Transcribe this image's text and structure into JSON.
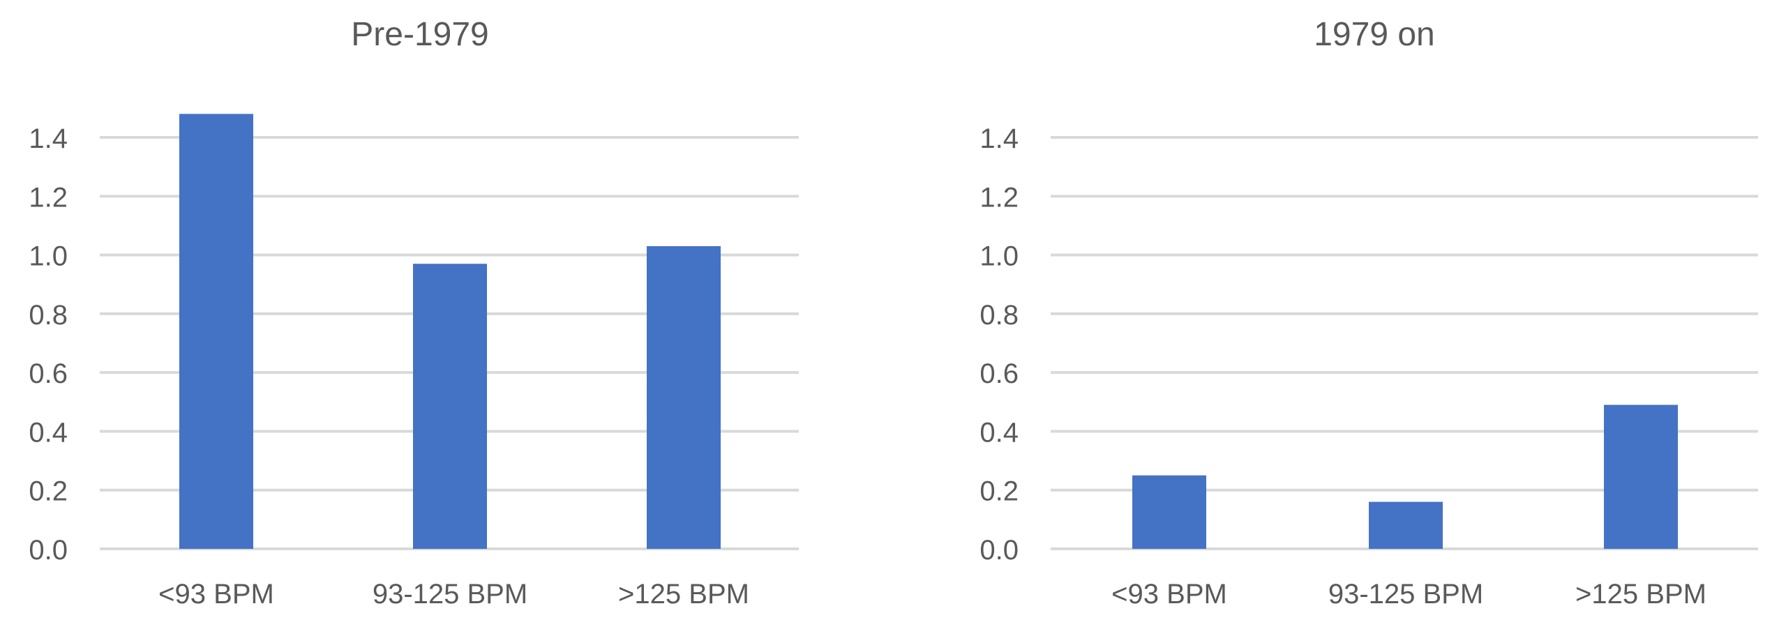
{
  "chart_data": [
    {
      "type": "bar",
      "title": "Pre-1979",
      "categories": [
        "<93 BPM",
        "93-125 BPM",
        ">125 BPM"
      ],
      "values": [
        1.48,
        0.97,
        1.03
      ],
      "ylim": [
        0,
        1.4
      ],
      "yticks": [
        "0.0",
        "0.2",
        "0.4",
        "0.6",
        "0.8",
        "1.0",
        "1.2",
        "1.4"
      ],
      "grid": true,
      "bar_color": "#4472C4"
    },
    {
      "type": "bar",
      "title": "1979 on",
      "categories": [
        "<93 BPM",
        "93-125 BPM",
        ">125 BPM"
      ],
      "values": [
        0.25,
        0.16,
        0.49
      ],
      "ylim": [
        0,
        1.4
      ],
      "yticks": [
        "0.0",
        "0.2",
        "0.4",
        "0.6",
        "0.8",
        "1.0",
        "1.2",
        "1.4"
      ],
      "grid": true,
      "bar_color": "#4472C4"
    }
  ]
}
